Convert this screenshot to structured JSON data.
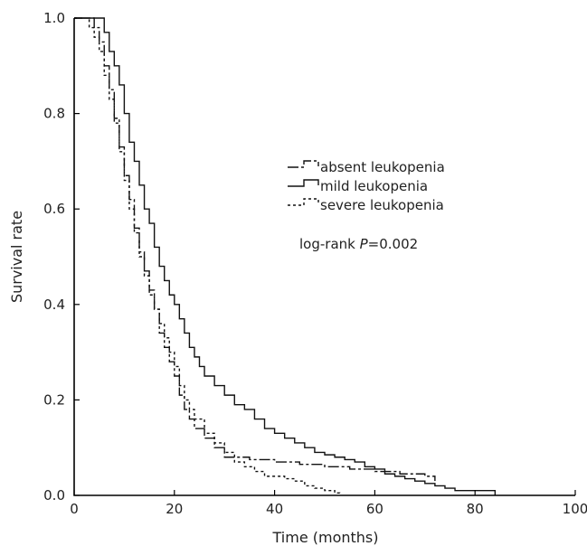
{
  "chart_data": {
    "type": "line",
    "xlabel": "Time (months)",
    "ylabel": "Survival rate",
    "xlim": [
      0,
      100
    ],
    "ylim": [
      0,
      1.0
    ],
    "x_ticks": [
      0,
      20,
      40,
      60,
      80,
      100
    ],
    "x_tick_labels": [
      "0",
      "20",
      "40",
      "60",
      "80",
      "100"
    ],
    "y_ticks": [
      0,
      0.2,
      0.4,
      0.6,
      0.8,
      1.0
    ],
    "y_tick_labels": [
      "0.0",
      "0.2",
      "0.4",
      "0.6",
      "0.8",
      "1.0"
    ],
    "grid": false,
    "legend_position": "center-right",
    "annotation": {
      "prefix": "log-rank ",
      "italic": "P",
      "suffix": "=0.002"
    },
    "series": [
      {
        "name": "absent leukopenia",
        "dash": "12 3 3 3",
        "x": [
          0,
          3,
          4,
          5,
          6,
          7,
          8,
          9,
          10,
          11,
          12,
          13,
          14,
          15,
          16,
          17,
          18,
          19,
          20,
          21,
          22,
          23,
          24,
          26,
          28,
          30,
          32,
          35,
          40,
          45,
          50,
          55,
          60,
          65,
          70,
          72
        ],
        "y": [
          1.0,
          1.0,
          0.98,
          0.95,
          0.9,
          0.85,
          0.79,
          0.73,
          0.67,
          0.62,
          0.56,
          0.51,
          0.47,
          0.43,
          0.39,
          0.34,
          0.31,
          0.28,
          0.25,
          0.21,
          0.18,
          0.16,
          0.14,
          0.12,
          0.1,
          0.08,
          0.08,
          0.075,
          0.07,
          0.065,
          0.06,
          0.055,
          0.05,
          0.045,
          0.04,
          0.03
        ]
      },
      {
        "name": "mild leukopenia",
        "dash": "",
        "x": [
          0,
          5,
          6,
          7,
          8,
          9,
          10,
          11,
          12,
          13,
          14,
          15,
          16,
          17,
          18,
          19,
          20,
          21,
          22,
          23,
          24,
          25,
          26,
          28,
          30,
          32,
          34,
          36,
          38,
          40,
          42,
          44,
          46,
          48,
          50,
          52,
          54,
          56,
          58,
          60,
          62,
          64,
          66,
          68,
          70,
          72,
          74,
          76,
          80,
          84
        ],
        "y": [
          1.0,
          1.0,
          0.97,
          0.93,
          0.9,
          0.86,
          0.8,
          0.74,
          0.7,
          0.65,
          0.6,
          0.57,
          0.52,
          0.48,
          0.45,
          0.42,
          0.4,
          0.37,
          0.34,
          0.31,
          0.29,
          0.27,
          0.25,
          0.23,
          0.21,
          0.19,
          0.18,
          0.16,
          0.14,
          0.13,
          0.12,
          0.11,
          0.1,
          0.09,
          0.085,
          0.08,
          0.075,
          0.07,
          0.06,
          0.055,
          0.045,
          0.04,
          0.035,
          0.03,
          0.025,
          0.02,
          0.015,
          0.01,
          0.01,
          0.0
        ]
      },
      {
        "name": "severe leukopenia",
        "dash": "3 3",
        "x": [
          0,
          3,
          4,
          5,
          6,
          7,
          8,
          9,
          10,
          11,
          12,
          13,
          14,
          15,
          16,
          17,
          18,
          19,
          20,
          21,
          22,
          23,
          24,
          26,
          28,
          30,
          32,
          34,
          36,
          38,
          40,
          42,
          44,
          46,
          48,
          50,
          52,
          53
        ],
        "y": [
          1.0,
          0.98,
          0.96,
          0.93,
          0.88,
          0.83,
          0.78,
          0.72,
          0.66,
          0.6,
          0.55,
          0.5,
          0.46,
          0.42,
          0.39,
          0.36,
          0.33,
          0.3,
          0.27,
          0.23,
          0.2,
          0.18,
          0.16,
          0.13,
          0.11,
          0.09,
          0.07,
          0.06,
          0.05,
          0.04,
          0.04,
          0.035,
          0.03,
          0.02,
          0.015,
          0.01,
          0.005,
          0.0
        ]
      }
    ]
  }
}
